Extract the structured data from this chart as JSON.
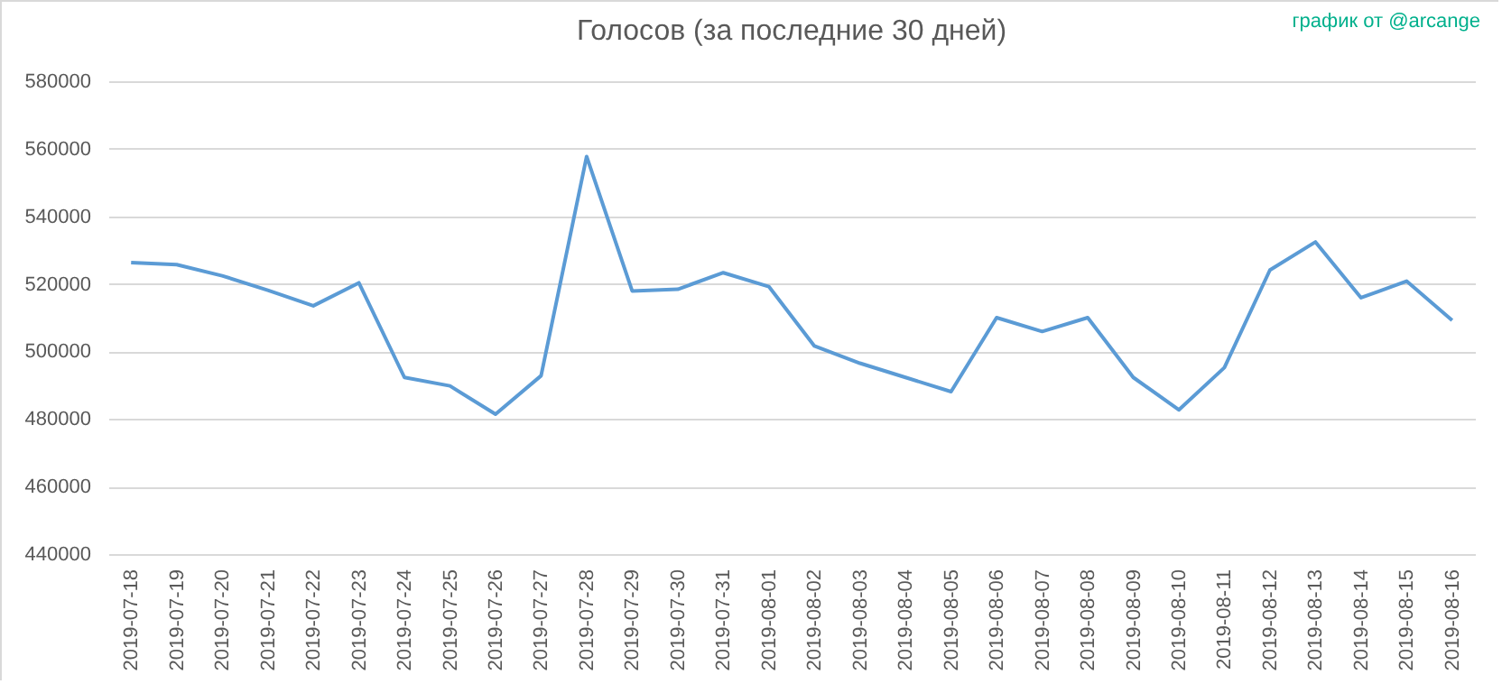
{
  "chart_data": {
    "type": "line",
    "title": "Голосов (за последние 30 дней)",
    "annotations": [
      "график от @arcange"
    ],
    "categories": [
      "2019-07-18",
      "2019-07-19",
      "2019-07-20",
      "2019-07-21",
      "2019-07-22",
      "2019-07-23",
      "2019-07-24",
      "2019-07-25",
      "2019-07-26",
      "2019-07-27",
      "2019-07-28",
      "2019-07-29",
      "2019-07-30",
      "2019-07-31",
      "2019-08-01",
      "2019-08-02",
      "2019-08-03",
      "2019-08-04",
      "2019-08-05",
      "2019-08-06",
      "2019-08-07",
      "2019-08-08",
      "2019-08-09",
      "2019-08-10",
      "2019-08-11",
      "2019-08-12",
      "2019-08-13",
      "2019-08-14",
      "2019-08-15",
      "2019-08-16"
    ],
    "series": [
      {
        "color": "#5b9bd5",
        "values": [
          526300,
          525700,
          522400,
          518100,
          513500,
          520300,
          492300,
          489800,
          481400,
          492800,
          557700,
          517900,
          518400,
          523300,
          519200,
          501600,
          496500,
          492300,
          488100,
          510000,
          505900,
          510000,
          492300,
          482700,
          495200,
          524100,
          532400,
          515900,
          520800,
          509200
        ]
      }
    ],
    "ylim": [
      440000,
      580000
    ],
    "yticks": [
      440000,
      460000,
      480000,
      500000,
      520000,
      540000,
      560000,
      580000
    ],
    "grid": "y"
  }
}
